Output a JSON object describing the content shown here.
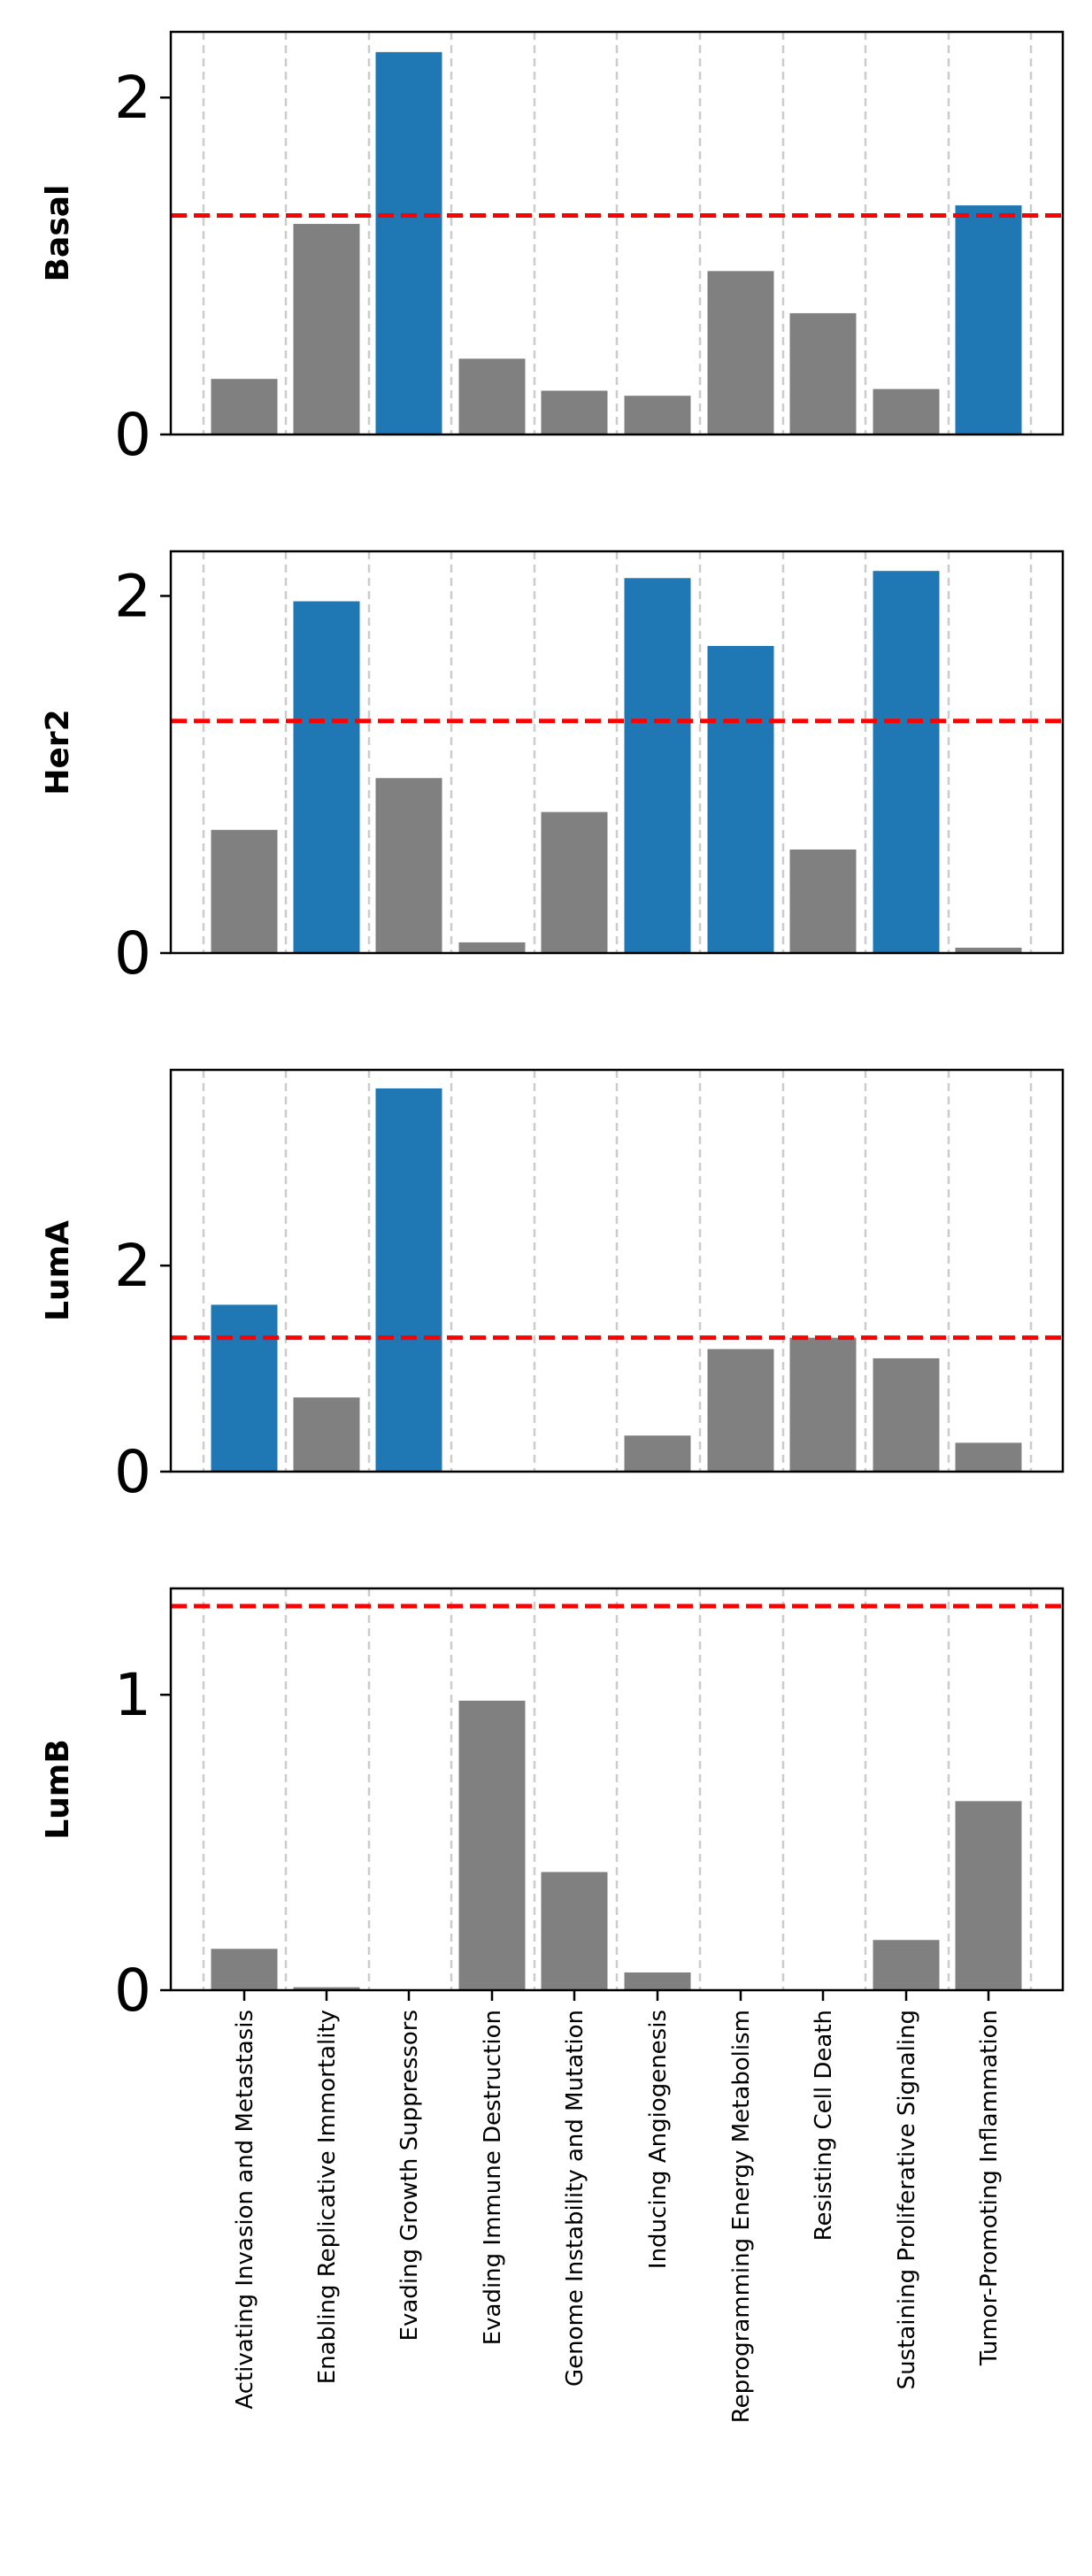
{
  "colors": {
    "significant": "#1f77b4",
    "not_significant": "#808080",
    "threshold": "#ff0000",
    "grid": "#cccccc"
  },
  "categories": [
    "Activating Invasion and Metastasis",
    "Enabling Replicative Immortality",
    "Evading Growth Suppressors",
    "Evading Immune Destruction",
    "Genome Instability and Mutation",
    "Inducing Angiogenesis",
    "Reprogramming Energy Metabolism",
    "Resisting Cell Death",
    "Sustaining Proliferative Signaling",
    "Tumor-Promoting Inflammation"
  ],
  "chart_data": [
    {
      "type": "bar",
      "ylabel": "Basal",
      "categories": [
        "Activating Invasion and Metastasis",
        "Enabling Replicative Immortality",
        "Evading Growth Suppressors",
        "Evading Immune Destruction",
        "Genome Instability and Mutation",
        "Inducing Angiogenesis",
        "Reprogramming Energy Metabolism",
        "Resisting Cell Death",
        "Sustaining Proliferative Signaling",
        "Tumor-Promoting Inflammation"
      ],
      "values": [
        0.33,
        1.25,
        2.27,
        0.45,
        0.26,
        0.23,
        0.97,
        0.72,
        0.27,
        1.36
      ],
      "significant": [
        false,
        false,
        true,
        false,
        false,
        false,
        false,
        false,
        false,
        true
      ],
      "threshold": 1.3,
      "ylim": [
        0,
        2.39
      ],
      "yticks": [
        0,
        2
      ],
      "grid": "x dashed",
      "xtick_labels_shown": false
    },
    {
      "type": "bar",
      "ylabel": "Her2",
      "categories": [
        "Activating Invasion and Metastasis",
        "Enabling Replicative Immortality",
        "Evading Growth Suppressors",
        "Evading Immune Destruction",
        "Genome Instability and Mutation",
        "Inducing Angiogenesis",
        "Reprogramming Energy Metabolism",
        "Resisting Cell Death",
        "Sustaining Proliferative Signaling",
        "Tumor-Promoting Inflammation"
      ],
      "values": [
        0.69,
        1.97,
        0.98,
        0.06,
        0.79,
        2.1,
        1.72,
        0.58,
        2.14,
        0.03
      ],
      "significant": [
        false,
        true,
        false,
        false,
        false,
        true,
        true,
        false,
        true,
        false
      ],
      "threshold": 1.3,
      "ylim": [
        0,
        2.25
      ],
      "yticks": [
        0,
        2
      ],
      "grid": "x dashed",
      "xtick_labels_shown": false
    },
    {
      "type": "bar",
      "ylabel": "LumA",
      "categories": [
        "Activating Invasion and Metastasis",
        "Enabling Replicative Immortality",
        "Evading Growth Suppressors",
        "Evading Immune Destruction",
        "Genome Instability and Mutation",
        "Inducing Angiogenesis",
        "Reprogramming Energy Metabolism",
        "Resisting Cell Death",
        "Sustaining Proliferative Signaling",
        "Tumor-Promoting Inflammation"
      ],
      "values": [
        1.62,
        0.72,
        3.72,
        0,
        0,
        0.35,
        1.19,
        1.3,
        1.1,
        0.28
      ],
      "significant": [
        true,
        false,
        true,
        false,
        false,
        false,
        false,
        false,
        false,
        false
      ],
      "threshold": 1.3,
      "ylim": [
        0,
        3.9
      ],
      "yticks": [
        0,
        2
      ],
      "grid": "x dashed",
      "xtick_labels_shown": false
    },
    {
      "type": "bar",
      "ylabel": "LumB",
      "categories": [
        "Activating Invasion and Metastasis",
        "Enabling Replicative Immortality",
        "Evading Growth Suppressors",
        "Evading Immune Destruction",
        "Genome Instability and Mutation",
        "Inducing Angiogenesis",
        "Reprogramming Energy Metabolism",
        "Resisting Cell Death",
        "Sustaining Proliferative Signaling",
        "Tumor-Promoting Inflammation"
      ],
      "values": [
        0.14,
        0.01,
        0,
        0.98,
        0.4,
        0.06,
        0,
        0,
        0.17,
        0.64
      ],
      "significant": [
        false,
        false,
        false,
        false,
        false,
        false,
        false,
        false,
        false,
        false
      ],
      "threshold": 1.3,
      "ylim": [
        0,
        1.36
      ],
      "yticks": [
        0,
        1
      ],
      "grid": "x dashed",
      "xtick_labels_shown": true
    }
  ]
}
